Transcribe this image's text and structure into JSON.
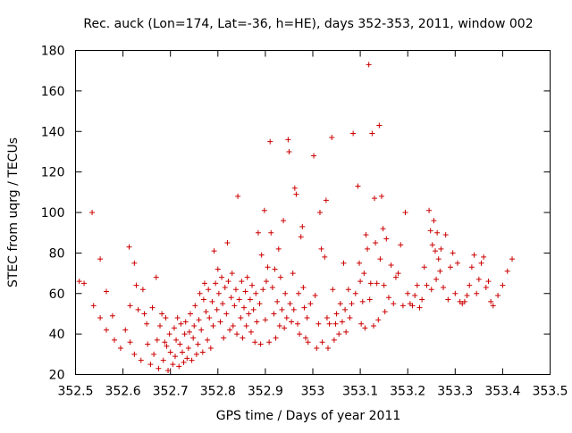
{
  "chart_data": {
    "type": "scatter",
    "title": "Rec. auck (Lon=174, Lat=-36, h=HE), days 352-353, 2011, window 002",
    "xlabel": "GPS time / Days of year 2011",
    "ylabel": "STEC from uqrg / TECUs",
    "xlim": [
      352.5,
      353.5
    ],
    "ylim": [
      20,
      180
    ],
    "x_ticks": [
      "352.5",
      "352.6",
      "352.7",
      "352.8",
      "352.9",
      "353",
      "353.1",
      "353.2",
      "353.3",
      "353.4",
      "353.5"
    ],
    "y_ticks": [
      "20",
      "40",
      "60",
      "80",
      "100",
      "120",
      "140",
      "160",
      "180"
    ],
    "grid": false,
    "legend": "none",
    "marker": "plus",
    "color": "#cc0000",
    "series": [
      {
        "points": [
          [
            352.508,
            66
          ],
          [
            352.518,
            65
          ],
          [
            352.535,
            100
          ],
          [
            352.538,
            54
          ],
          [
            352.552,
            77
          ],
          [
            352.552,
            48
          ],
          [
            352.565,
            61
          ],
          [
            352.565,
            42
          ],
          [
            352.578,
            49
          ],
          [
            352.582,
            37
          ],
          [
            352.595,
            33
          ],
          [
            352.605,
            42
          ],
          [
            352.613,
            83
          ],
          [
            352.615,
            36
          ],
          [
            352.615,
            54
          ],
          [
            352.624,
            75
          ],
          [
            352.624,
            30
          ],
          [
            352.628,
            64
          ],
          [
            352.632,
            52
          ],
          [
            352.638,
            27
          ],
          [
            352.642,
            62
          ],
          [
            352.645,
            50
          ],
          [
            352.65,
            45
          ],
          [
            352.652,
            35
          ],
          [
            352.658,
            25
          ],
          [
            352.662,
            53
          ],
          [
            352.665,
            30
          ],
          [
            352.67,
            68
          ],
          [
            352.672,
            37
          ],
          [
            352.675,
            23
          ],
          [
            352.678,
            44
          ],
          [
            352.682,
            50
          ],
          [
            352.685,
            27
          ],
          [
            352.688,
            36
          ],
          [
            352.69,
            48
          ],
          [
            352.692,
            34
          ],
          [
            352.695,
            22
          ],
          [
            352.698,
            40
          ],
          [
            352.7,
            31
          ],
          [
            352.705,
            25
          ],
          [
            352.708,
            43
          ],
          [
            352.71,
            29
          ],
          [
            352.712,
            37
          ],
          [
            352.715,
            48
          ],
          [
            352.718,
            24
          ],
          [
            352.72,
            35
          ],
          [
            352.722,
            45
          ],
          [
            352.725,
            31
          ],
          [
            352.728,
            26
          ],
          [
            352.73,
            40
          ],
          [
            352.732,
            46
          ],
          [
            352.735,
            28
          ],
          [
            352.738,
            33
          ],
          [
            352.74,
            41
          ],
          [
            352.742,
            50
          ],
          [
            352.745,
            27
          ],
          [
            352.748,
            38
          ],
          [
            352.75,
            44
          ],
          [
            352.752,
            54
          ],
          [
            352.755,
            30
          ],
          [
            352.758,
            35
          ],
          [
            352.76,
            47
          ],
          [
            352.762,
            60
          ],
          [
            352.765,
            42
          ],
          [
            352.768,
            31
          ],
          [
            352.77,
            57
          ],
          [
            352.772,
            65
          ],
          [
            352.775,
            51
          ],
          [
            352.778,
            37
          ],
          [
            352.78,
            62
          ],
          [
            352.782,
            48
          ],
          [
            352.785,
            33
          ],
          [
            352.788,
            56
          ],
          [
            352.79,
            44
          ],
          [
            352.792,
            81
          ],
          [
            352.795,
            65
          ],
          [
            352.798,
            52
          ],
          [
            352.8,
            72
          ],
          [
            352.802,
            60
          ],
          [
            352.805,
            46
          ],
          [
            352.808,
            68
          ],
          [
            352.81,
            55
          ],
          [
            352.812,
            38
          ],
          [
            352.815,
            63
          ],
          [
            352.818,
            50
          ],
          [
            352.82,
            85
          ],
          [
            352.822,
            66
          ],
          [
            352.825,
            42
          ],
          [
            352.828,
            58
          ],
          [
            352.83,
            70
          ],
          [
            352.832,
            44
          ],
          [
            352.835,
            54
          ],
          [
            352.838,
            62
          ],
          [
            352.84,
            40
          ],
          [
            352.842,
            108
          ],
          [
            352.845,
            57
          ],
          [
            352.848,
            48
          ],
          [
            352.85,
            66
          ],
          [
            352.852,
            38
          ],
          [
            352.855,
            53
          ],
          [
            352.858,
            61
          ],
          [
            352.86,
            44
          ],
          [
            352.862,
            68
          ],
          [
            352.865,
            50
          ],
          [
            352.868,
            57
          ],
          [
            352.87,
            41
          ],
          [
            352.872,
            64
          ],
          [
            352.875,
            52
          ],
          [
            352.878,
            36
          ],
          [
            352.88,
            60
          ],
          [
            352.882,
            46
          ],
          [
            352.885,
            90
          ],
          [
            352.888,
            55
          ],
          [
            352.89,
            35
          ],
          [
            352.892,
            79
          ],
          [
            352.895,
            62
          ],
          [
            352.898,
            101
          ],
          [
            352.9,
            47
          ],
          [
            352.902,
            66
          ],
          [
            352.905,
            73
          ],
          [
            352.908,
            36
          ],
          [
            352.91,
            135
          ],
          [
            352.912,
            90
          ],
          [
            352.915,
            63
          ],
          [
            352.918,
            50
          ],
          [
            352.92,
            72
          ],
          [
            352.922,
            38
          ],
          [
            352.925,
            56
          ],
          [
            352.928,
            82
          ],
          [
            352.93,
            44
          ],
          [
            352.932,
            68
          ],
          [
            352.935,
            52
          ],
          [
            352.938,
            96
          ],
          [
            352.94,
            43
          ],
          [
            352.942,
            60
          ],
          [
            352.945,
            48
          ],
          [
            352.948,
            136
          ],
          [
            352.95,
            130
          ],
          [
            352.952,
            55
          ],
          [
            352.955,
            46
          ],
          [
            352.958,
            70
          ],
          [
            352.96,
            52
          ],
          [
            352.962,
            112
          ],
          [
            352.965,
            109
          ],
          [
            352.968,
            45
          ],
          [
            352.97,
            60
          ],
          [
            352.972,
            40
          ],
          [
            352.975,
            88
          ],
          [
            352.978,
            93
          ],
          [
            352.98,
            63
          ],
          [
            352.982,
            53
          ],
          [
            352.985,
            38
          ],
          [
            352.988,
            48
          ],
          [
            352.99,
            36
          ],
          [
            352.995,
            55
          ],
          [
            353.002,
            128
          ],
          [
            353.005,
            59
          ],
          [
            353.008,
            33
          ],
          [
            353.012,
            45
          ],
          [
            353.015,
            100
          ],
          [
            353.018,
            82
          ],
          [
            353.02,
            36
          ],
          [
            353.025,
            78
          ],
          [
            353.028,
            106
          ],
          [
            353.03,
            48
          ],
          [
            353.032,
            33
          ],
          [
            353.035,
            45
          ],
          [
            353.04,
            137
          ],
          [
            353.042,
            62
          ],
          [
            353.045,
            37
          ],
          [
            353.048,
            45
          ],
          [
            353.05,
            50
          ],
          [
            353.055,
            40
          ],
          [
            353.058,
            55
          ],
          [
            353.062,
            46
          ],
          [
            353.065,
            75
          ],
          [
            353.068,
            52
          ],
          [
            353.07,
            41
          ],
          [
            353.075,
            62
          ],
          [
            353.078,
            48
          ],
          [
            353.082,
            55
          ],
          [
            353.085,
            139
          ],
          [
            353.09,
            60
          ],
          [
            353.095,
            113
          ],
          [
            353.098,
            75
          ],
          [
            353.1,
            66
          ],
          [
            353.102,
            45
          ],
          [
            353.105,
            56
          ],
          [
            353.108,
            70
          ],
          [
            353.11,
            43
          ],
          [
            353.112,
            89
          ],
          [
            353.115,
            82
          ],
          [
            353.118,
            173
          ],
          [
            353.12,
            57
          ],
          [
            353.122,
            65
          ],
          [
            353.125,
            139
          ],
          [
            353.128,
            44
          ],
          [
            353.13,
            107
          ],
          [
            353.132,
            85
          ],
          [
            353.135,
            65
          ],
          [
            353.138,
            47
          ],
          [
            353.14,
            143
          ],
          [
            353.142,
            77
          ],
          [
            353.145,
            108
          ],
          [
            353.148,
            92
          ],
          [
            353.15,
            64
          ],
          [
            353.152,
            51
          ],
          [
            353.155,
            87
          ],
          [
            353.16,
            58
          ],
          [
            353.165,
            74
          ],
          [
            353.17,
            55
          ],
          [
            353.175,
            68
          ],
          [
            353.18,
            70
          ],
          [
            353.185,
            84
          ],
          [
            353.19,
            54
          ],
          [
            353.195,
            100
          ],
          [
            353.2,
            60
          ],
          [
            353.205,
            55
          ],
          [
            353.21,
            54
          ],
          [
            353.215,
            59
          ],
          [
            353.22,
            64
          ],
          [
            353.225,
            53
          ],
          [
            353.23,
            57
          ],
          [
            353.235,
            73
          ],
          [
            353.24,
            64
          ],
          [
            353.245,
            101
          ],
          [
            353.248,
            91
          ],
          [
            353.25,
            62
          ],
          [
            353.252,
            84
          ],
          [
            353.255,
            96
          ],
          [
            353.258,
            81
          ],
          [
            353.26,
            67
          ],
          [
            353.262,
            90
          ],
          [
            353.265,
            77
          ],
          [
            353.268,
            71
          ],
          [
            353.27,
            82
          ],
          [
            353.275,
            63
          ],
          [
            353.28,
            89
          ],
          [
            353.285,
            57
          ],
          [
            353.29,
            73
          ],
          [
            353.295,
            80
          ],
          [
            353.3,
            60
          ],
          [
            353.305,
            75
          ],
          [
            353.31,
            56
          ],
          [
            353.315,
            55
          ],
          [
            353.32,
            56
          ],
          [
            353.325,
            59
          ],
          [
            353.33,
            64
          ],
          [
            353.335,
            73
          ],
          [
            353.34,
            79
          ],
          [
            353.345,
            60
          ],
          [
            353.35,
            67
          ],
          [
            353.355,
            75
          ],
          [
            353.36,
            78
          ],
          [
            353.365,
            63
          ],
          [
            353.37,
            66
          ],
          [
            353.375,
            56
          ],
          [
            353.38,
            54
          ],
          [
            353.39,
            59
          ],
          [
            353.4,
            64
          ],
          [
            353.41,
            71
          ],
          [
            353.42,
            77
          ]
        ]
      }
    ]
  }
}
